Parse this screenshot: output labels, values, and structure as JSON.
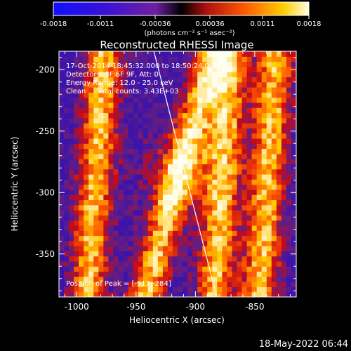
{
  "colorbar": {
    "tick_labels": [
      "-0.0018",
      "-0.0011",
      "-0.00036",
      "0.00036",
      "0.0011",
      "0.0018"
    ],
    "units": "(photons cm⁻² s⁻¹ asec⁻²)",
    "range": [
      -0.0018,
      0.0018
    ]
  },
  "title": "Reconstructed RHESSI Image",
  "info": {
    "time": "17-Oct-2014 18:45:32.000 to 18:50:24.000",
    "detectors": "Detectors: 3F 6F 9F, Att: 0",
    "energy": "Energy Range: 12.0 - 25.0 keV",
    "clean": "Clean     Total counts: 3.43E+03",
    "peak": "Position of Peak = [-917,-284]"
  },
  "xaxis": {
    "label": "Heliocentric X (arcsec)",
    "ticks": [
      "-1000",
      "-950",
      "-900",
      "-850"
    ]
  },
  "yaxis": {
    "label": "Heliocentric Y (arcsec)",
    "ticks": [
      "-200",
      "-250",
      "-300",
      "-350"
    ]
  },
  "footer": {
    "date": "18-May-2022 06:44"
  },
  "chart_data": {
    "type": "heatmap",
    "title": "Reconstructed RHESSI Image",
    "xlabel": "Heliocentric X (arcsec)",
    "ylabel": "Heliocentric Y (arcsec)",
    "xlim": [
      -1015,
      -815
    ],
    "ylim": [
      -385,
      -185
    ],
    "x_ticks": [
      -1000,
      -950,
      -900,
      -850
    ],
    "y_ticks": [
      -200,
      -250,
      -300,
      -350
    ],
    "peak": [
      -917,
      -284
    ],
    "limb_line": [
      [
        -935,
        -185
      ],
      [
        -882,
        -385
      ]
    ],
    "colorscale": "rhessi-hot-signed",
    "bright_bands_x": [
      -985,
      -918,
      -878,
      -840
    ],
    "dark_bands_x": [
      -955,
      -900,
      -862
    ],
    "grid": false
  }
}
